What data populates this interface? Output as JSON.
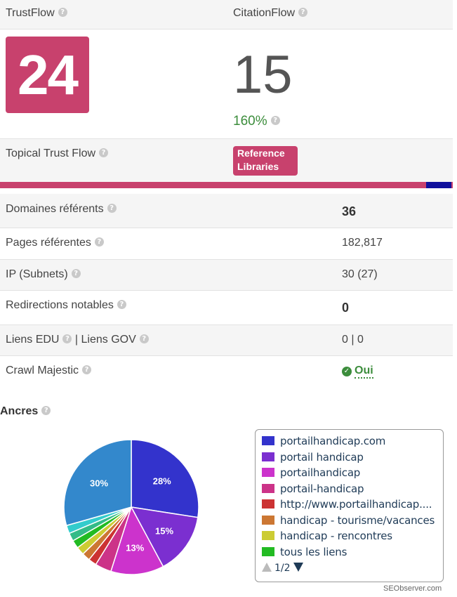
{
  "header": {
    "trust_flow_label": "TrustFlow",
    "citation_flow_label": "CitationFlow"
  },
  "scores": {
    "trust_flow": "24",
    "citation_flow": "15",
    "percent": "160%"
  },
  "topical": {
    "label": "Topical Trust Flow",
    "badge_line1": "Reference",
    "badge_line2": "Libraries",
    "bar_colors": [
      "#c8416d",
      "#10109c"
    ]
  },
  "metrics": [
    {
      "label": "Domaines référents",
      "value": "36",
      "bold": true
    },
    {
      "label": "Pages référentes",
      "value": "182,817",
      "bold": false
    },
    {
      "label": "IP (Subnets)",
      "value": "30 (27)",
      "bold": false
    },
    {
      "label": "Redirections notables",
      "value": "0",
      "bold": true
    },
    {
      "label_a": "Liens EDU",
      "label_b": "Liens GOV",
      "value": "0 | 0",
      "bold": false
    },
    {
      "label": "Crawl Majestic",
      "value": "Oui",
      "bold": true
    }
  ],
  "ancres": {
    "title": "Ancres",
    "legend_items": [
      {
        "label": "portailhandicap.com",
        "color": "#3333cc"
      },
      {
        "label": "portail handicap",
        "color": "#7b2fd0"
      },
      {
        "label": "portailhandicap",
        "color": "#cc33cc"
      },
      {
        "label": "portail-handicap",
        "color": "#cc3388"
      },
      {
        "label": "http://www.portailhandicap....",
        "color": "#cc3333"
      },
      {
        "label": "handicap - tourisme/vacances",
        "color": "#cc7733"
      },
      {
        "label": "handicap - rencontres",
        "color": "#cccc33"
      },
      {
        "label": "tous les liens",
        "color": "#22bb22"
      }
    ],
    "pagination": "1/2",
    "credit": "SEObserver.com"
  },
  "chart_data": {
    "type": "pie",
    "slices": [
      {
        "name": "portailhandicap.com",
        "value": 28,
        "label": "28%",
        "color": "#3333cc"
      },
      {
        "name": "portail handicap",
        "value": 15,
        "label": "15%",
        "color": "#7b2fd0"
      },
      {
        "name": "portailhandicap",
        "value": 13,
        "label": "13%",
        "color": "#cc33cc"
      },
      {
        "name": "portail-handicap",
        "value": 4,
        "label": "",
        "color": "#cc3388"
      },
      {
        "name": "http://www.portailhandicap....",
        "value": 2,
        "label": "",
        "color": "#cc3333"
      },
      {
        "name": "handicap - tourisme/vacances",
        "value": 2,
        "label": "",
        "color": "#cc7733"
      },
      {
        "name": "handicap - rencontres",
        "value": 2,
        "label": "",
        "color": "#cccc33"
      },
      {
        "name": "tous les liens",
        "value": 2,
        "label": "",
        "color": "#22bb22"
      },
      {
        "name": "",
        "value": 2,
        "label": "",
        "color": "#33bb88"
      },
      {
        "name": "",
        "value": 2,
        "label": "",
        "color": "#33cccc"
      },
      {
        "name": "",
        "value": 30,
        "label": "30%",
        "color": "#3388cc"
      }
    ]
  }
}
